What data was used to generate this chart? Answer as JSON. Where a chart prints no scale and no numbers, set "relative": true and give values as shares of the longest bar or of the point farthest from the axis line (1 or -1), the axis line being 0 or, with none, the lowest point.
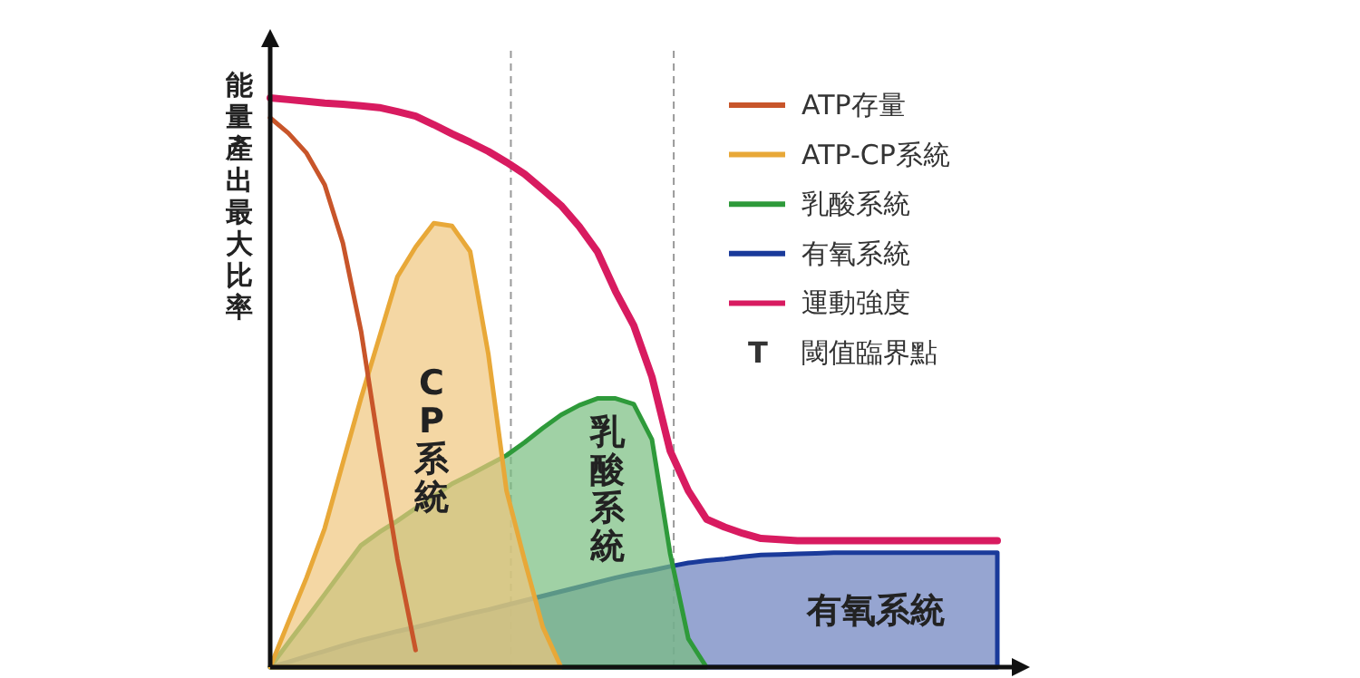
{
  "chart_data": {
    "type": "area",
    "relative": true,
    "ylabel": "能量產出最大比率",
    "legend": "top right",
    "categories": [
      null,
      null,
      null,
      null,
      null,
      null,
      null,
      null,
      null,
      null,
      null,
      null,
      null,
      null,
      null,
      null,
      null,
      null,
      null,
      null,
      null,
      null,
      null,
      null,
      null,
      null,
      null,
      null,
      null,
      null,
      null,
      null,
      null,
      null,
      null,
      null,
      null,
      null,
      null,
      null,
      null
    ],
    "series": [
      {
        "name": "ATP存量",
        "type": "line",
        "color": "#c8552a",
        "values": [
          0.965,
          0.938,
          0.903,
          0.847,
          0.745,
          0.59,
          0.384,
          0.19,
          0.03,
          null,
          null,
          null,
          null,
          null,
          null,
          null,
          null,
          null,
          null,
          null,
          null,
          null,
          null,
          null,
          null,
          null,
          null,
          null,
          null,
          null,
          null,
          null,
          null,
          null,
          null,
          null,
          null,
          null,
          null,
          null,
          null
        ]
      },
      {
        "name": "ATP-CP系統",
        "color": "#e8a838",
        "values": [
          0,
          0.079,
          0.157,
          0.244,
          0.359,
          0.473,
          0.579,
          0.686,
          0.738,
          0.78,
          0.775,
          0.73,
          0.55,
          0.31,
          0.187,
          0.07,
          0,
          null,
          null,
          null,
          null,
          null,
          null,
          null,
          null,
          null,
          null,
          null,
          null,
          null,
          null,
          null,
          null,
          null,
          null,
          null,
          null,
          null,
          null,
          null,
          null
        ]
      },
      {
        "name": "乳酸系統",
        "color": "#2e9a3a",
        "values": [
          0,
          0.043,
          0.085,
          0.128,
          0.171,
          0.214,
          0.237,
          0.257,
          0.279,
          0.3,
          0.322,
          0.338,
          0.355,
          0.372,
          0.395,
          0.42,
          0.443,
          0.46,
          0.472,
          0.472,
          0.462,
          0.4,
          0.2,
          0.05,
          0,
          null,
          null,
          null,
          null,
          null,
          null,
          null,
          null,
          null,
          null,
          null,
          null,
          null,
          null,
          null,
          null
        ]
      },
      {
        "name": "有氧系統",
        "color": "#1a3a9a",
        "values": [
          0,
          0.009,
          0.019,
          0.028,
          0.038,
          0.047,
          0.055,
          0.063,
          0.07,
          0.078,
          0.086,
          0.094,
          0.101,
          0.109,
          0.117,
          0.125,
          0.133,
          0.141,
          0.149,
          0.157,
          0.164,
          0.17,
          0.177,
          0.183,
          0.187,
          0.19,
          0.194,
          0.197,
          0.198,
          0.199,
          0.2,
          0.201,
          0.201,
          0.201,
          0.201,
          0.201,
          0.201,
          0.201,
          0.201,
          0.201,
          0.201
        ]
      },
      {
        "name": "運動強度",
        "type": "line",
        "color": "#d81b60",
        "values": [
          1,
          0.997,
          0.994,
          0.991,
          0.989,
          0.986,
          0.983,
          0.976,
          0.968,
          0.953,
          0.937,
          0.922,
          0.906,
          0.887,
          0.866,
          0.839,
          0.811,
          0.774,
          0.73,
          0.66,
          0.6,
          0.51,
          0.38,
          0.31,
          0.26,
          0.246,
          0.235,
          0.226,
          0.224,
          0.222,
          0.222,
          0.222,
          0.222,
          0.222,
          0.222,
          0.222,
          0.222,
          0.222,
          0.222,
          0.222,
          0.222
        ]
      }
    ],
    "annotations": [
      "CP系統",
      "乳酸系統",
      "有氧系統",
      "T",
      "閾值臨界點"
    ]
  }
}
